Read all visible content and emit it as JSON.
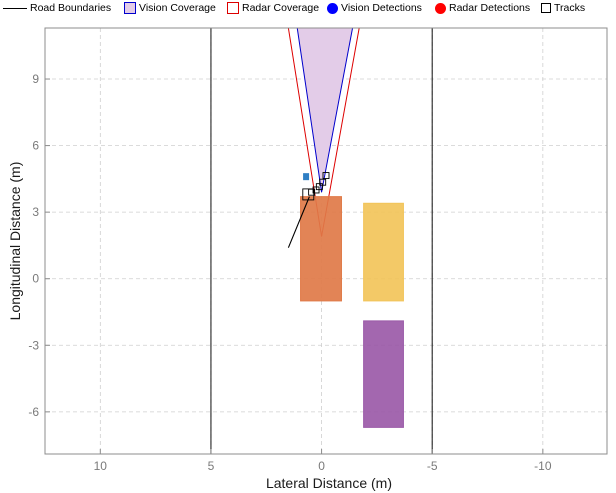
{
  "chart_data": {
    "type": "scatter",
    "title": "",
    "xlabel": "Lateral Distance (m)",
    "ylabel": "Longitudinal Distance (m)",
    "xlim": [
      12.5,
      -12.9
    ],
    "ylim": [
      -7.9,
      11.3
    ],
    "x_reversed": true,
    "grid": true,
    "legend_placement": "top",
    "xticks": [
      10,
      5,
      0,
      -5,
      -10
    ],
    "xtick_labels": [
      "10",
      "5",
      "0",
      "-5",
      "-10"
    ],
    "yticks": [
      9,
      6,
      3,
      0,
      -3,
      -6
    ],
    "ytick_labels": [
      "9",
      "6",
      "3",
      "0",
      "-3",
      "-6"
    ],
    "legend": [
      {
        "label": "Road Boundaries",
        "marker": "line",
        "color": "#000000"
      },
      {
        "label": "Vision Coverage",
        "marker": "patch",
        "color": "#0000cc"
      },
      {
        "label": "Radar Coverage",
        "marker": "patch",
        "color": "#dd0000"
      },
      {
        "label": "Vision Detections",
        "marker": "dot",
        "color": "#0000ff"
      },
      {
        "label": "Radar Detections",
        "marker": "dot",
        "color": "#ff0000"
      },
      {
        "label": "Tracks",
        "marker": "square",
        "color": "#000000"
      }
    ],
    "road_boundaries": [
      5,
      -5
    ],
    "vision_coverage": {
      "apex": [
        0,
        3.9
      ],
      "edges": [
        [
          -1.4,
          11.3
        ],
        [
          1.1,
          11.3
        ]
      ],
      "fill": "#e3cce8",
      "stroke": "#0000cc"
    },
    "radar_coverage": {
      "apex": [
        0,
        1.9
      ],
      "edges": [
        [
          -1.7,
          11.3
        ],
        [
          1.5,
          11.3
        ]
      ],
      "stroke": "#dd0000"
    },
    "vehicles": [
      {
        "x": [
          -0.9,
          0.95
        ],
        "y": [
          -1.0,
          3.7
        ],
        "color": "#e07a48"
      },
      {
        "x": [
          -3.7,
          -1.9
        ],
        "y": [
          -1.0,
          3.4
        ],
        "color": "#f2c45a"
      },
      {
        "x": [
          -3.7,
          -1.9
        ],
        "y": [
          -6.7,
          -1.9
        ],
        "color": "#9b5aa8"
      }
    ],
    "vision_detections": [
      [
        0.7,
        4.6
      ]
    ],
    "radar_detections": [],
    "tracks": [
      {
        "x": 0.6,
        "y": 3.8,
        "size": "large"
      },
      {
        "x": 0.45,
        "y": 3.9,
        "size": "small"
      },
      {
        "x": 0.25,
        "y": 4.0,
        "size": "small"
      },
      {
        "x": 0.1,
        "y": 4.15,
        "size": "small"
      },
      {
        "x": -0.05,
        "y": 4.35,
        "size": "small"
      },
      {
        "x": -0.2,
        "y": 4.65,
        "size": "small"
      }
    ],
    "track_heading": {
      "from": [
        1.5,
        1.4
      ],
      "to": [
        0.55,
        3.7
      ]
    }
  }
}
